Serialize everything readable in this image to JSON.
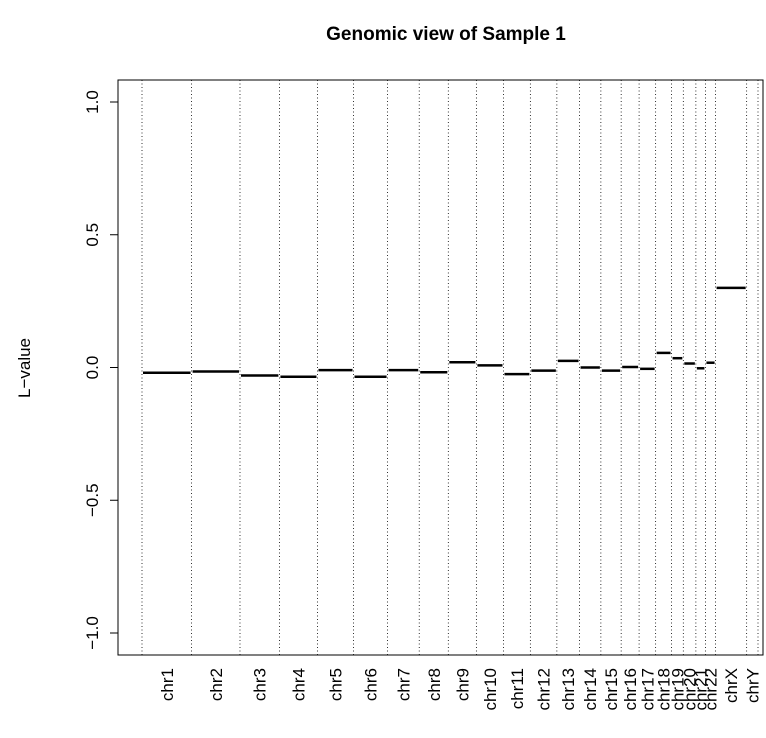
{
  "chart_data": {
    "type": "line",
    "title": "Genomic view of Sample 1",
    "xlabel": "",
    "ylabel": "L−value",
    "ylim": [
      -1.1,
      1.1
    ],
    "yticks": [
      "−1.0",
      "−0.5",
      "0.0",
      "0.5",
      "1.0"
    ],
    "ytick_values": [
      -1.0,
      -0.5,
      0.0,
      0.5,
      1.0
    ],
    "grid": "vertical dotted chromosome boundaries",
    "categories": [
      "chr1",
      "chr2",
      "chr3",
      "chr4",
      "chr5",
      "chr6",
      "chr7",
      "chr8",
      "chr9",
      "chr10",
      "chr11",
      "chr12",
      "chr13",
      "chr14",
      "chr15",
      "chr16",
      "chr17",
      "chr18",
      "chr19",
      "chr20",
      "chr21",
      "chr22",
      "chrX",
      "chrY"
    ],
    "chromosome_lengths_mb": [
      249,
      243,
      198,
      191,
      181,
      171,
      159,
      146,
      141,
      136,
      135,
      133,
      114,
      107,
      102,
      90,
      83,
      80,
      59,
      63,
      48,
      51,
      156,
      57
    ],
    "values": [
      -0.02,
      -0.015,
      -0.03,
      -0.035,
      -0.01,
      -0.035,
      -0.01,
      -0.018,
      0.02,
      0.008,
      -0.025,
      -0.012,
      0.025,
      0.0,
      -0.012,
      0.002,
      -0.005,
      0.055,
      0.035,
      0.015,
      -0.003,
      0.018,
      0.3,
      null
    ],
    "colors": {
      "segment": "#000000",
      "axis": "#000000",
      "grid": "#000000"
    }
  }
}
